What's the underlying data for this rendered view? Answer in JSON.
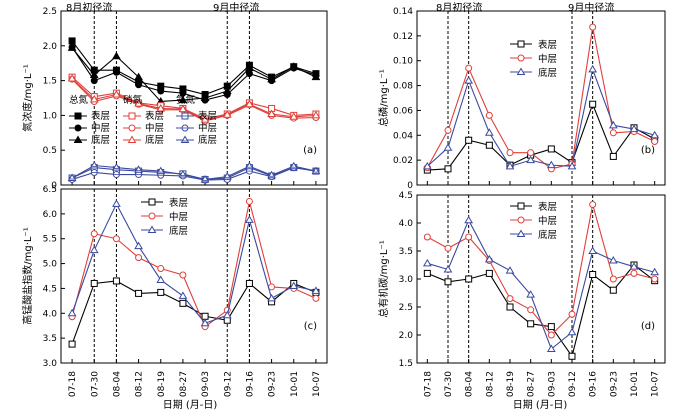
{
  "chart_data": [
    {
      "id": "a",
      "type": "line",
      "panel_label": "(a)",
      "ylabel": "氮浓度/mg·L⁻¹",
      "ylim": [
        0,
        2.5
      ],
      "yticks": [
        "0",
        "0.5",
        "1.0",
        "1.5",
        "2.0",
        "2.5"
      ],
      "ytick_values": [
        0,
        0.5,
        1.0,
        1.5,
        2.0,
        2.5
      ],
      "categories": [
        "07-18",
        "07-30",
        "08-04",
        "08-12",
        "08-19",
        "08-27",
        "09-03",
        "09-12",
        "09-16",
        "09-23",
        "10-01",
        "10-07"
      ],
      "legend_groups": [
        "总氮",
        "硝氮",
        "氨氮"
      ],
      "series": [
        {
          "name": "表层",
          "group": "总氮",
          "color": "#000000",
          "marker": "square",
          "values": [
            2.07,
            1.65,
            1.65,
            1.48,
            1.42,
            1.38,
            1.3,
            1.42,
            1.72,
            1.55,
            1.7,
            1.6
          ]
        },
        {
          "name": "中层",
          "group": "总氮",
          "color": "#000000",
          "marker": "circle",
          "values": [
            1.98,
            1.5,
            1.62,
            1.44,
            1.35,
            1.32,
            1.22,
            1.3,
            1.6,
            1.5,
            1.68,
            1.58
          ]
        },
        {
          "name": "底层",
          "group": "总氮",
          "color": "#000000",
          "marker": "triangle",
          "values": [
            1.97,
            1.58,
            1.85,
            1.55,
            1.2,
            1.22,
            1.25,
            1.35,
            1.68,
            1.52,
            1.7,
            1.55
          ]
        },
        {
          "name": "表层",
          "group": "硝氮",
          "color": "#e0403a",
          "marker": "square-open",
          "values": [
            1.55,
            1.27,
            1.32,
            1.18,
            1.14,
            1.1,
            0.95,
            1.02,
            1.18,
            1.1,
            1.0,
            1.02
          ]
        },
        {
          "name": "中层",
          "group": "硝氮",
          "color": "#e0403a",
          "marker": "circle-open",
          "values": [
            1.52,
            1.2,
            1.28,
            1.16,
            1.08,
            1.08,
            0.92,
            1.0,
            1.15,
            1.0,
            0.96,
            0.97
          ]
        },
        {
          "name": "底层",
          "group": "硝氮",
          "color": "#e0403a",
          "marker": "triangle-open",
          "values": [
            1.53,
            1.23,
            1.3,
            1.17,
            1.1,
            1.09,
            0.94,
            1.01,
            1.16,
            1.02,
            0.98,
            1.0
          ]
        },
        {
          "name": "表层",
          "group": "氨氮",
          "color": "#3a4aa0",
          "marker": "square-cross",
          "values": [
            0.1,
            0.25,
            0.22,
            0.2,
            0.18,
            0.16,
            0.08,
            0.1,
            0.25,
            0.13,
            0.25,
            0.2
          ]
        },
        {
          "name": "中层",
          "group": "氨氮",
          "color": "#3a4aa0",
          "marker": "circle-cross",
          "values": [
            0.08,
            0.18,
            0.15,
            0.15,
            0.14,
            0.13,
            0.07,
            0.08,
            0.2,
            0.12,
            0.25,
            0.2
          ]
        },
        {
          "name": "底层",
          "group": "氨氮",
          "color": "#3a4aa0",
          "marker": "triangle-cross",
          "values": [
            0.1,
            0.28,
            0.25,
            0.22,
            0.2,
            0.15,
            0.08,
            0.12,
            0.27,
            0.14,
            0.27,
            0.2
          ]
        }
      ]
    },
    {
      "id": "b",
      "type": "line",
      "panel_label": "(b)",
      "ylabel": "总磷/mg·L⁻¹",
      "ylim": [
        0,
        0.14
      ],
      "yticks": [
        "0",
        "0.02",
        "0.04",
        "0.06",
        "0.08",
        "0.10",
        "0.12",
        "0.14"
      ],
      "ytick_values": [
        0,
        0.02,
        0.04,
        0.06,
        0.08,
        0.1,
        0.12,
        0.14
      ],
      "categories": [
        "07-18",
        "07-30",
        "08-04",
        "08-12",
        "08-19",
        "08-27",
        "09-03",
        "09-12",
        "09-16",
        "09-23",
        "10-01",
        "10-07"
      ],
      "series": [
        {
          "name": "表层",
          "color": "#000000",
          "marker": "square-open",
          "values": [
            0.012,
            0.013,
            0.036,
            0.032,
            0.016,
            0.024,
            0.029,
            0.018,
            0.065,
            0.023,
            0.046,
            0.037
          ]
        },
        {
          "name": "中层",
          "color": "#e0403a",
          "marker": "circle-open",
          "values": [
            0.014,
            0.044,
            0.094,
            0.056,
            0.026,
            0.026,
            0.013,
            0.017,
            0.127,
            0.042,
            0.043,
            0.035
          ]
        },
        {
          "name": "底层",
          "color": "#3a4aa0",
          "marker": "triangle-open",
          "values": [
            0.015,
            0.03,
            0.084,
            0.042,
            0.015,
            0.02,
            0.016,
            0.015,
            0.093,
            0.048,
            0.045,
            0.04
          ]
        }
      ]
    },
    {
      "id": "c",
      "type": "line",
      "panel_label": "(c)",
      "ylabel": "高锰酸盐指数/mg·L⁻¹",
      "ylim": [
        3.0,
        6.5
      ],
      "yticks": [
        "3.0",
        "3.5",
        "4.0",
        "4.5",
        "5.0",
        "5.5",
        "6.0",
        "6.5"
      ],
      "ytick_values": [
        3.0,
        3.5,
        4.0,
        4.5,
        5.0,
        5.5,
        6.0,
        6.5
      ],
      "categories": [
        "07-18",
        "07-30",
        "08-04",
        "08-12",
        "08-19",
        "08-27",
        "09-03",
        "09-12",
        "09-16",
        "09-23",
        "10-01",
        "10-07"
      ],
      "series": [
        {
          "name": "表层",
          "color": "#000000",
          "marker": "square-open",
          "values": [
            3.38,
            4.6,
            4.65,
            4.4,
            4.42,
            4.2,
            3.94,
            3.86,
            4.6,
            4.23,
            4.6,
            4.42
          ]
        },
        {
          "name": "中层",
          "color": "#e0403a",
          "marker": "circle-open",
          "values": [
            3.93,
            5.6,
            5.5,
            5.12,
            4.9,
            4.77,
            3.73,
            4.06,
            6.25,
            4.53,
            4.5,
            4.3
          ]
        },
        {
          "name": "底层",
          "color": "#3a4aa0",
          "marker": "triangle-open",
          "values": [
            4.0,
            5.27,
            6.2,
            5.35,
            4.67,
            4.35,
            3.8,
            3.96,
            5.88,
            4.3,
            4.55,
            4.45
          ]
        }
      ]
    },
    {
      "id": "d",
      "type": "line",
      "panel_label": "(d)",
      "ylabel": "总有机碳/mg·L⁻¹",
      "ylim": [
        1.5,
        4.5
      ],
      "yticks": [
        "1.5",
        "2.0",
        "2.5",
        "3.0",
        "3.5",
        "4.0",
        "4.5"
      ],
      "ytick_values": [
        1.5,
        2.0,
        2.5,
        3.0,
        3.5,
        4.0,
        4.5
      ],
      "categories": [
        "07-18",
        "07-30",
        "08-04",
        "08-12",
        "08-19",
        "08-27",
        "09-03",
        "09-12",
        "09-16",
        "09-23",
        "10-01",
        "10-07"
      ],
      "series": [
        {
          "name": "表层",
          "color": "#000000",
          "marker": "square-open",
          "values": [
            3.1,
            2.95,
            3.0,
            3.1,
            2.5,
            2.2,
            2.15,
            1.62,
            3.08,
            2.8,
            3.25,
            2.97
          ]
        },
        {
          "name": "中层",
          "color": "#e0403a",
          "marker": "circle-open",
          "values": [
            3.75,
            3.55,
            3.75,
            3.33,
            2.65,
            2.45,
            2.0,
            2.37,
            4.33,
            3.0,
            3.1,
            3.0
          ]
        },
        {
          "name": "底层",
          "color": "#3a4aa0",
          "marker": "triangle-open",
          "values": [
            3.28,
            3.17,
            4.05,
            3.35,
            3.15,
            2.72,
            1.75,
            2.05,
            3.5,
            3.33,
            3.22,
            3.12
          ]
        }
      ]
    }
  ],
  "annotations": {
    "august_flow": "8月初径流",
    "september_flow": "9月中径流"
  },
  "xlabel": "日期 (月-日)"
}
